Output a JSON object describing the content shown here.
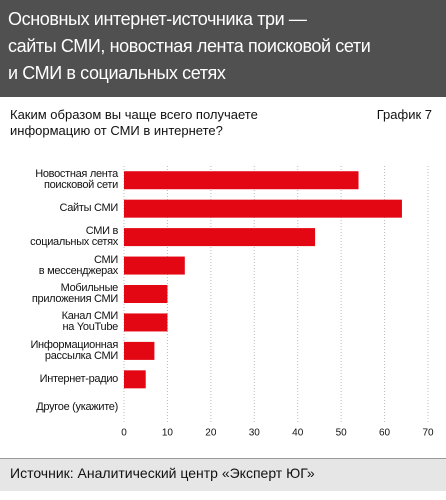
{
  "chart_data": {
    "type": "bar",
    "orientation": "horizontal",
    "title": "Основных интернет-источника три —\nсайты СМИ, новостная лента поисковой сети\nи СМИ в социальных сетях",
    "subtitle": "Каким образом вы чаще всего получаете\nинформацию от СМИ в интернете?",
    "chart_number": "График 7",
    "categories": [
      "Новостная лента\nпоисковой сети",
      "Сайты СМИ",
      "СМИ в\nсоциальных сетях",
      "СМИ\nв мессенджерах",
      "Мобильные\nприложения СМИ",
      "Канал СМИ\nна YouTube",
      "Информационная\nрассылка СМИ",
      "Интернет-радио",
      "Другое (укажите)"
    ],
    "values": [
      54,
      64,
      44,
      14,
      10,
      10,
      7,
      5,
      0
    ],
    "color": "#e30613",
    "xlim": [
      0,
      70
    ],
    "xticks": [
      0,
      10,
      20,
      30,
      40,
      50,
      60,
      70
    ],
    "grid": true,
    "source": "Источник: Аналитический центр «Эксперт ЮГ»"
  }
}
